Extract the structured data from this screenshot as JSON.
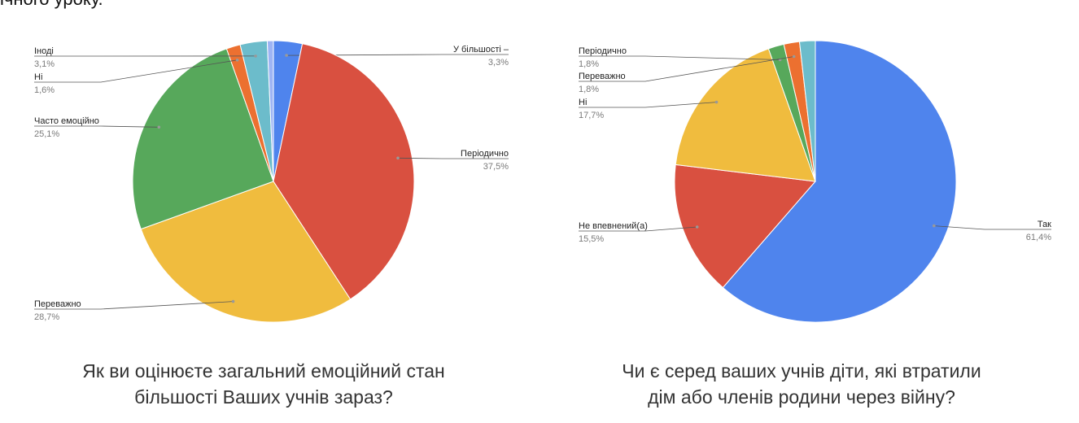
{
  "top_text": "ічного уроку.",
  "chart_data": [
    {
      "type": "pie",
      "title_lines": [
        "Як ви оцінюєте загальний емоційний стан",
        "більшості Ваших учнів зараз?"
      ],
      "start_angle_deg": 0,
      "slices": [
        {
          "label": "У більшості –",
          "value_text": "3,3%",
          "value": 3.3,
          "color": "#4f84ed"
        },
        {
          "label": "Періодично",
          "value_text": "37,5%",
          "value": 37.5,
          "color": "#d95040"
        },
        {
          "label": "Переважно",
          "value_text": "28,7%",
          "value": 28.7,
          "color": "#f0bc3e"
        },
        {
          "label": "Часто емоційно",
          "value_text": "25,1%",
          "value": 25.1,
          "color": "#57a85b"
        },
        {
          "label": "Ні",
          "value_text": "1,6%",
          "value": 1.6,
          "color": "#ec7030"
        },
        {
          "label": "Іноді",
          "value_text": "3,1%",
          "value": 3.1,
          "color": "#6cbccb"
        },
        {
          "label": "",
          "value_text": "",
          "value": 0.7,
          "color": "#9db4f4"
        }
      ]
    },
    {
      "type": "pie",
      "title_lines": [
        "Чи є серед ваших учнів діти, які втратили",
        "дім або членів родини через війну?"
      ],
      "start_angle_deg": 0,
      "slices": [
        {
          "label": "Так",
          "value_text": "61,4%",
          "value": 61.4,
          "color": "#4f84ed"
        },
        {
          "label": "Не впевнений(а)",
          "value_text": "15,5%",
          "value": 15.5,
          "color": "#d95040"
        },
        {
          "label": "Ні",
          "value_text": "17,7%",
          "value": 17.7,
          "color": "#f0bc3e"
        },
        {
          "label": "Періодично",
          "value_text": "1,8%",
          "value": 1.8,
          "color": "#57a85b"
        },
        {
          "label": "Переважно",
          "value_text": "1,8%",
          "value": 1.8,
          "color": "#ec7030"
        },
        {
          "label": "",
          "value_text": "",
          "value": 1.8,
          "color": "#6cbccb"
        }
      ]
    }
  ]
}
